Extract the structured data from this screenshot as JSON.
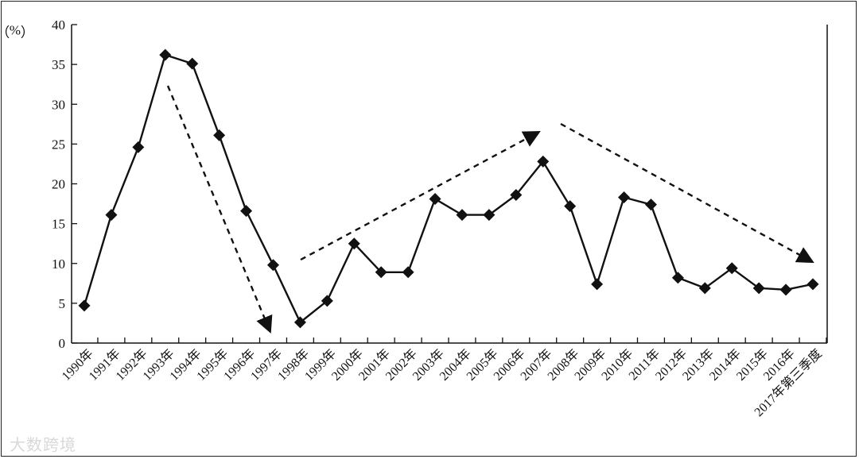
{
  "chart_data": {
    "type": "line",
    "title": "",
    "xlabel": "",
    "ylabel": "（%）",
    "ylim": [
      0,
      40
    ],
    "yticks": [
      0,
      5,
      10,
      15,
      20,
      25,
      30,
      35,
      40
    ],
    "grid": false,
    "categories": [
      "1990年",
      "1991年",
      "1992年",
      "1993年",
      "1994年",
      "1995年",
      "1996年",
      "1997年",
      "1998年",
      "1999年",
      "2000年",
      "2001年",
      "2002年",
      "2003年",
      "2004年",
      "2005年",
      "2006年",
      "2007年",
      "2008年",
      "2009年",
      "2010年",
      "2011年",
      "2012年",
      "2013年",
      "2014年",
      "2015年",
      "2016年",
      "2017年第三季度"
    ],
    "series": [
      {
        "values": [
          4.7,
          16.1,
          24.6,
          36.2,
          35.1,
          26.1,
          16.6,
          9.8,
          2.6,
          5.3,
          12.5,
          8.9,
          8.9,
          18.1,
          16.1,
          16.1,
          18.6,
          22.8,
          17.2,
          7.4,
          18.3,
          17.4,
          8.2,
          6.9,
          9.4,
          6.9,
          6.7,
          7.4
        ]
      }
    ],
    "color": "#111111"
  },
  "watermark": "大数跨境"
}
